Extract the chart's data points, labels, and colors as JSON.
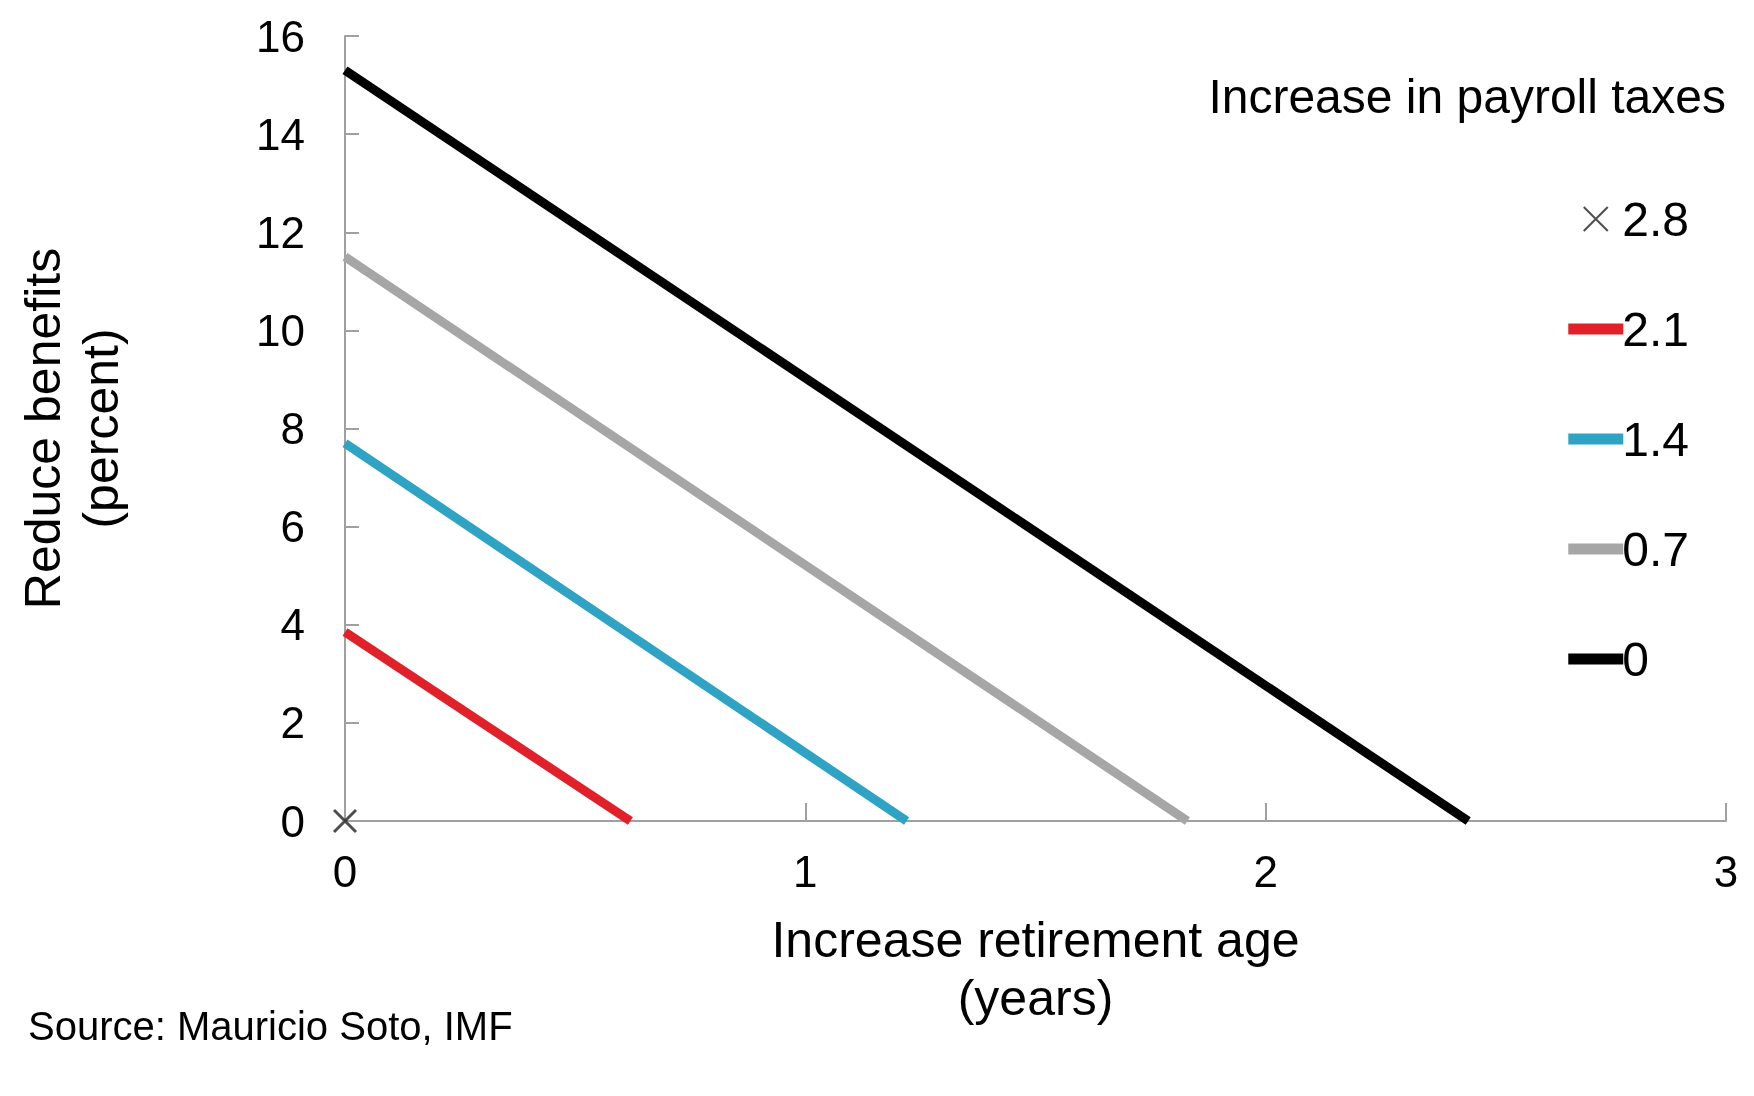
{
  "chart_data": {
    "type": "line",
    "xlabel": "Increase retirement age\n(years)",
    "ylabel": "Reduce benefits\n(percent)",
    "legend_title": "Increase in payroll taxes",
    "xlim": [
      0,
      3
    ],
    "xticks": [
      0,
      1,
      2,
      3
    ],
    "ylim": [
      0,
      16
    ],
    "yticks": [
      0,
      2,
      4,
      6,
      8,
      10,
      12,
      14,
      16
    ],
    "grid": false,
    "legend": "right",
    "line_style": "solid",
    "series": [
      {
        "name": "2.8",
        "type": "scatter",
        "marker": "cross",
        "color": "#222222",
        "x": [
          0
        ],
        "values": [
          0
        ]
      },
      {
        "name": "2.1",
        "color": "#e0212a",
        "marker": "none",
        "x": [
          0,
          0.62
        ],
        "values": [
          3.85,
          0
        ]
      },
      {
        "name": "1.4",
        "color": "#2fa3c4",
        "marker": "none",
        "x": [
          0,
          1.22
        ],
        "values": [
          7.7,
          0
        ]
      },
      {
        "name": "0.7",
        "color": "#a6a6a6",
        "marker": "none",
        "x": [
          0,
          1.83
        ],
        "values": [
          11.5,
          0
        ]
      },
      {
        "name": "0",
        "color": "#000000",
        "marker": "none",
        "x": [
          0,
          2.44
        ],
        "values": [
          15.3,
          0
        ]
      }
    ],
    "annotations": [
      "Source: Mauricio Soto, IMF"
    ]
  }
}
